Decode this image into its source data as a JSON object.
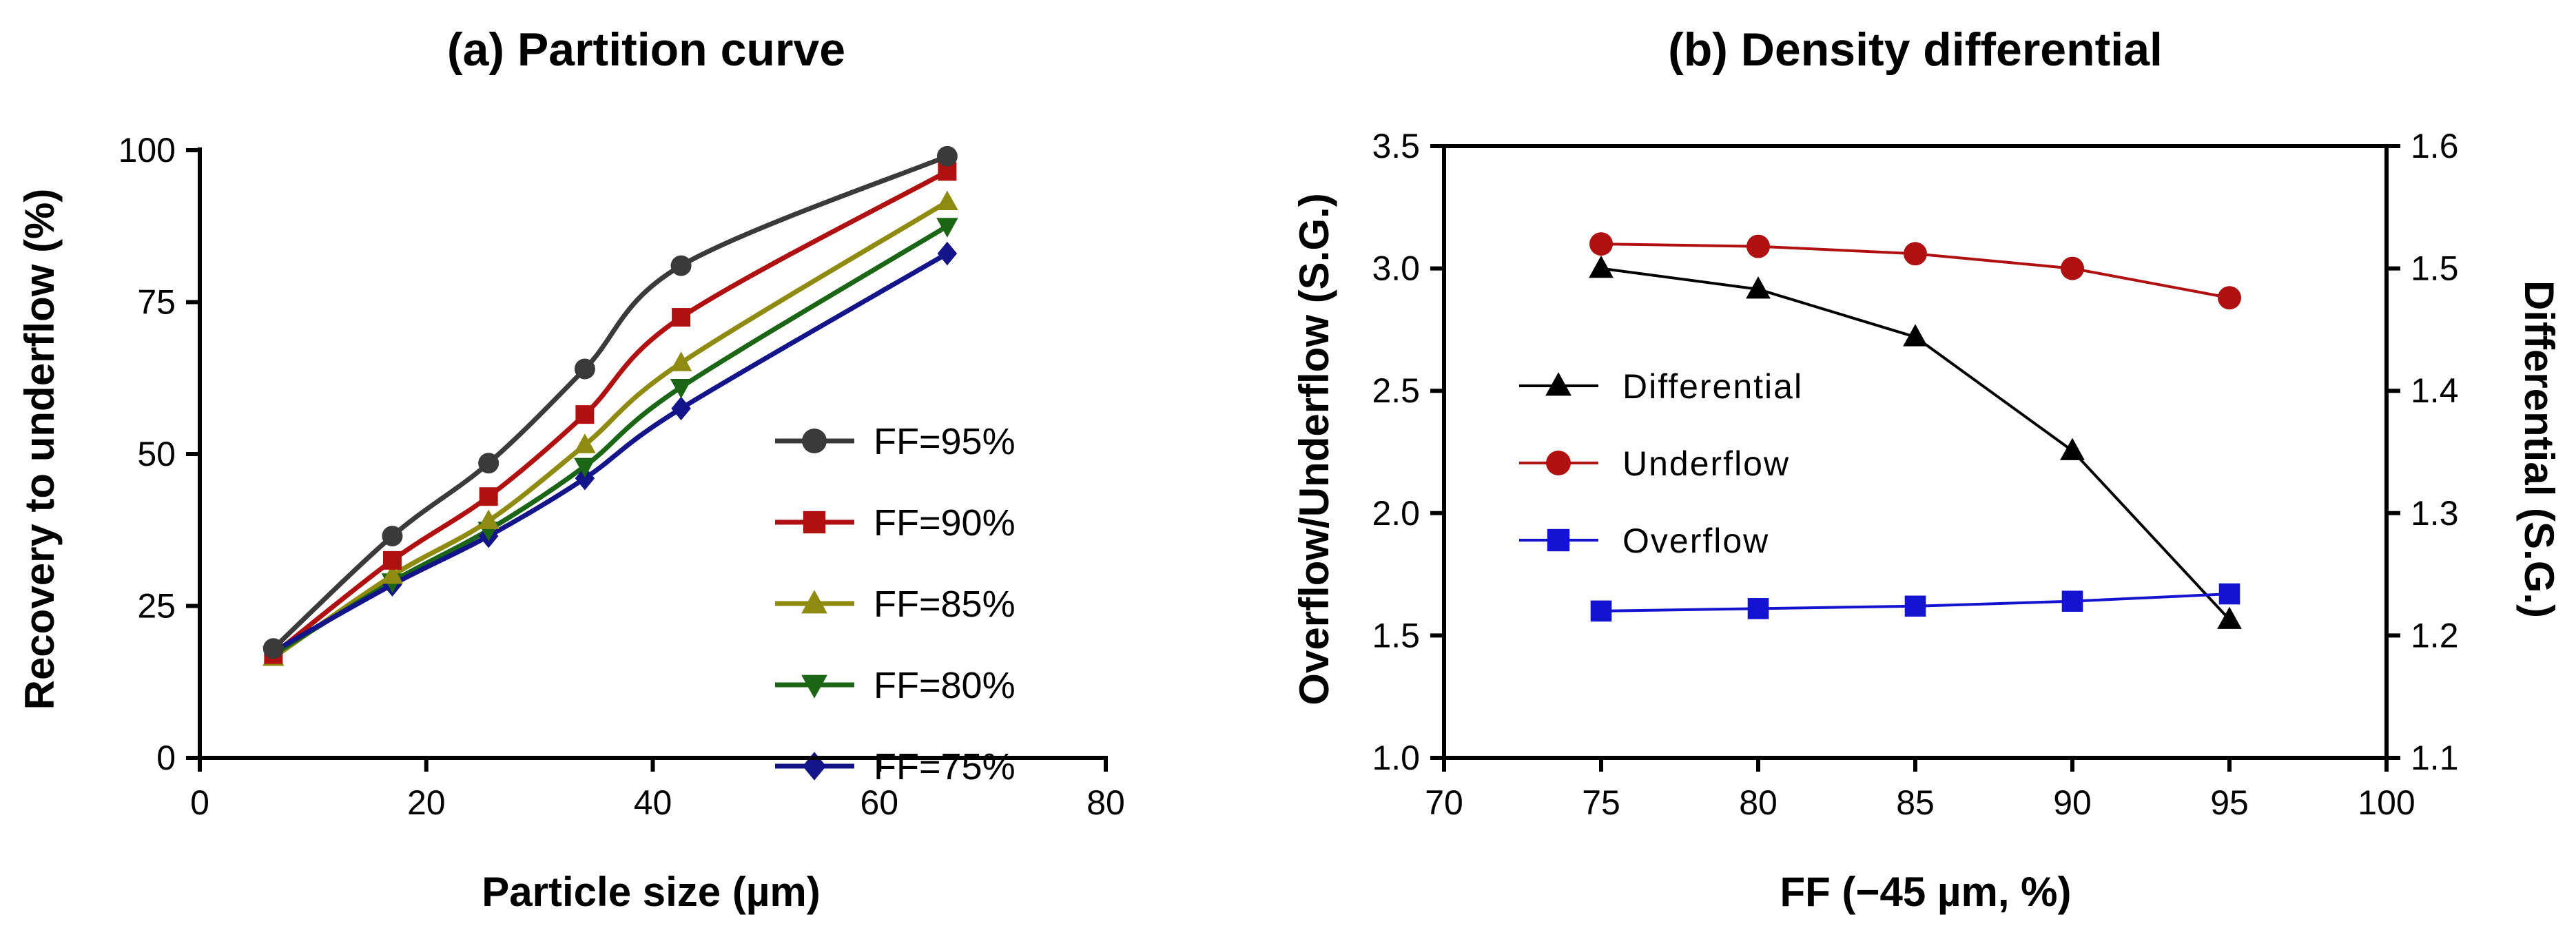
{
  "chart_data": [
    {
      "type": "line",
      "title": "(a) Partition curve",
      "xlabel": "Particle size (µm)",
      "ylabel": "Recovery to underflow (%)",
      "xlim": [
        0,
        80
      ],
      "ylim": [
        0,
        100
      ],
      "xticks": [
        0,
        20,
        40,
        60,
        80
      ],
      "yticks": [
        0,
        25,
        50,
        75,
        100
      ],
      "x": [
        6.5,
        17,
        25.5,
        34,
        42.5,
        66
      ],
      "series": [
        {
          "name": "FF=95%",
          "color": "#3a3a3a",
          "marker": "circle",
          "values": [
            18,
            36.5,
            48.5,
            64,
            81,
            99
          ]
        },
        {
          "name": "FF=90%",
          "color": "#b01010",
          "marker": "square",
          "values": [
            17,
            32.5,
            43,
            56.5,
            72.5,
            96.5
          ]
        },
        {
          "name": "FF=85%",
          "color": "#8f8a10",
          "marker": "triangle-up",
          "values": [
            16.5,
            30,
            39,
            51.5,
            65,
            91.5
          ]
        },
        {
          "name": "FF=80%",
          "color": "#1a6614",
          "marker": "triangle-down",
          "values": [
            17,
            29,
            37.5,
            48,
            61,
            87.5
          ]
        },
        {
          "name": "FF=75%",
          "color": "#14148a",
          "marker": "diamond",
          "values": [
            17.5,
            28.5,
            36.5,
            46,
            57.5,
            83
          ]
        }
      ],
      "legend_position": "bottom-right"
    },
    {
      "type": "line",
      "title": "(b) Density differential",
      "xlabel": "FF (−45 µm, %)",
      "ylabel": "Overflow/Underflow (S.G.)",
      "y2label": "Differential (S.G.)",
      "xlim": [
        70,
        100
      ],
      "ylim": [
        1.0,
        3.5
      ],
      "y2lim": [
        1.1,
        1.6
      ],
      "xticks": [
        70,
        75,
        80,
        85,
        90,
        95,
        100
      ],
      "yticks": [
        "1.0",
        "1.5",
        "2.0",
        "2.5",
        "3.0",
        "3.5"
      ],
      "y2ticks": [
        "1.1",
        "1.2",
        "1.3",
        "1.4",
        "1.5",
        "1.6"
      ],
      "x": [
        75,
        80,
        85,
        90,
        95
      ],
      "series": [
        {
          "name": "Differential",
          "axis": "right",
          "color": "#000000",
          "marker": "triangle-up",
          "values": [
            1.5,
            1.483,
            1.444,
            1.351,
            1.213
          ]
        },
        {
          "name": "Underflow",
          "axis": "left",
          "color": "#b01010",
          "marker": "circle",
          "values": [
            3.1,
            3.09,
            3.06,
            3.0,
            2.88
          ]
        },
        {
          "name": "Overflow",
          "axis": "left",
          "color": "#1414d0",
          "marker": "square",
          "values": [
            1.6,
            1.61,
            1.62,
            1.64,
            1.67
          ]
        }
      ],
      "legend_position": "middle-left"
    }
  ]
}
